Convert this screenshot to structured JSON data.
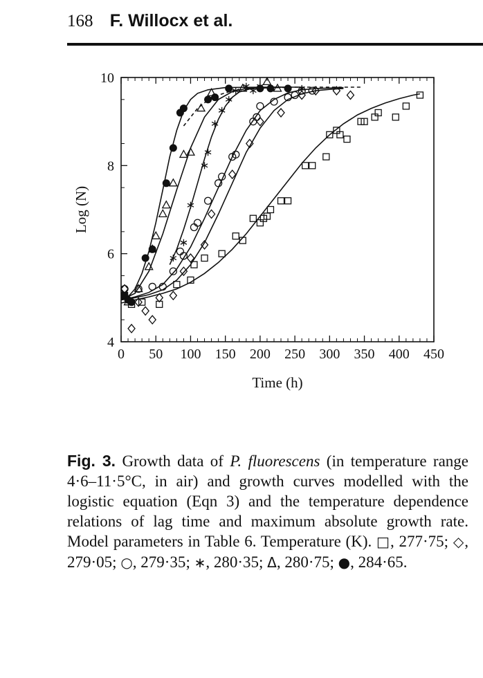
{
  "page": {
    "number": "168",
    "authors": "F. Willocx et al."
  },
  "chart_data": {
    "type": "scatter",
    "xlabel": "Time (h)",
    "ylabel": "Log (N)",
    "xlim": [
      0,
      450
    ],
    "ylim": [
      4,
      10
    ],
    "xticks": [
      0,
      50,
      100,
      150,
      200,
      250,
      300,
      350,
      400,
      450
    ],
    "yticks": [
      4,
      6,
      8,
      10
    ],
    "series": [
      {
        "name": "277·75",
        "marker": "square",
        "points": [
          [
            5,
            5.05
          ],
          [
            15,
            4.85
          ],
          [
            30,
            4.9
          ],
          [
            55,
            4.85
          ],
          [
            80,
            5.3
          ],
          [
            100,
            5.4
          ],
          [
            105,
            5.75
          ],
          [
            120,
            5.9
          ],
          [
            145,
            6.0
          ],
          [
            165,
            6.4
          ],
          [
            175,
            6.3
          ],
          [
            190,
            6.8
          ],
          [
            200,
            6.7
          ],
          [
            205,
            6.8
          ],
          [
            210,
            6.85
          ],
          [
            215,
            7.0
          ],
          [
            230,
            7.2
          ],
          [
            240,
            7.2
          ],
          [
            265,
            8.0
          ],
          [
            275,
            8.0
          ],
          [
            295,
            8.2
          ],
          [
            300,
            8.7
          ],
          [
            310,
            8.8
          ],
          [
            315,
            8.7
          ],
          [
            325,
            8.6
          ],
          [
            345,
            9.0
          ],
          [
            350,
            9.0
          ],
          [
            365,
            9.1
          ],
          [
            370,
            9.2
          ],
          [
            395,
            9.1
          ],
          [
            410,
            9.35
          ],
          [
            430,
            9.6
          ]
        ],
        "curve": [
          [
            0,
            4.88
          ],
          [
            20,
            4.95
          ],
          [
            40,
            5.02
          ],
          [
            60,
            5.1
          ],
          [
            80,
            5.2
          ],
          [
            100,
            5.35
          ],
          [
            120,
            5.55
          ],
          [
            140,
            5.8
          ],
          [
            160,
            6.1
          ],
          [
            180,
            6.45
          ],
          [
            200,
            6.85
          ],
          [
            220,
            7.25
          ],
          [
            240,
            7.65
          ],
          [
            260,
            8.05
          ],
          [
            280,
            8.4
          ],
          [
            300,
            8.7
          ],
          [
            320,
            8.95
          ],
          [
            340,
            9.15
          ],
          [
            360,
            9.3
          ],
          [
            380,
            9.42
          ],
          [
            400,
            9.52
          ],
          [
            420,
            9.6
          ],
          [
            430,
            9.63
          ]
        ]
      },
      {
        "name": "279·05",
        "marker": "diamond",
        "points": [
          [
            5,
            5.2
          ],
          [
            15,
            4.3
          ],
          [
            25,
            4.9
          ],
          [
            35,
            4.7
          ],
          [
            45,
            4.5
          ],
          [
            55,
            5.0
          ],
          [
            75,
            5.05
          ],
          [
            90,
            5.6
          ],
          [
            100,
            5.9
          ],
          [
            120,
            6.2
          ],
          [
            130,
            6.9
          ],
          [
            160,
            7.8
          ],
          [
            185,
            8.5
          ],
          [
            200,
            9.0
          ],
          [
            230,
            9.2
          ],
          [
            260,
            9.6
          ],
          [
            280,
            9.7
          ],
          [
            310,
            9.7
          ],
          [
            330,
            9.6
          ]
        ],
        "curve": [
          [
            0,
            4.95
          ],
          [
            20,
            5.0
          ],
          [
            40,
            5.07
          ],
          [
            60,
            5.18
          ],
          [
            80,
            5.4
          ],
          [
            100,
            5.75
          ],
          [
            120,
            6.25
          ],
          [
            140,
            6.9
          ],
          [
            160,
            7.6
          ],
          [
            180,
            8.3
          ],
          [
            200,
            8.85
          ],
          [
            220,
            9.25
          ],
          [
            240,
            9.5
          ],
          [
            260,
            9.63
          ],
          [
            280,
            9.7
          ],
          [
            300,
            9.73
          ],
          [
            320,
            9.75
          ]
        ]
      },
      {
        "name": "279·35",
        "marker": "circle",
        "points": [
          [
            5,
            5.2
          ],
          [
            25,
            5.2
          ],
          [
            45,
            5.25
          ],
          [
            60,
            5.25
          ],
          [
            75,
            5.6
          ],
          [
            85,
            6.05
          ],
          [
            90,
            5.95
          ],
          [
            105,
            6.6
          ],
          [
            110,
            6.7
          ],
          [
            125,
            7.2
          ],
          [
            140,
            7.6
          ],
          [
            145,
            7.75
          ],
          [
            160,
            8.2
          ],
          [
            165,
            8.25
          ],
          [
            190,
            9.0
          ],
          [
            195,
            9.1
          ],
          [
            200,
            9.35
          ],
          [
            220,
            9.45
          ],
          [
            240,
            9.55
          ],
          [
            250,
            9.6
          ],
          [
            260,
            9.7
          ],
          [
            275,
            9.7
          ]
        ],
        "curve": [
          [
            0,
            4.95
          ],
          [
            20,
            5.02
          ],
          [
            40,
            5.12
          ],
          [
            60,
            5.3
          ],
          [
            80,
            5.65
          ],
          [
            100,
            6.15
          ],
          [
            120,
            6.8
          ],
          [
            140,
            7.5
          ],
          [
            160,
            8.2
          ],
          [
            180,
            8.8
          ],
          [
            200,
            9.25
          ],
          [
            220,
            9.5
          ],
          [
            240,
            9.65
          ],
          [
            260,
            9.72
          ],
          [
            280,
            9.75
          ],
          [
            300,
            9.76
          ],
          [
            320,
            9.77
          ]
        ]
      },
      {
        "name": "280·35",
        "marker": "star",
        "points": [
          [
            75,
            5.9
          ],
          [
            90,
            6.25
          ],
          [
            100,
            7.1
          ],
          [
            120,
            8.0
          ],
          [
            125,
            8.3
          ],
          [
            135,
            8.95
          ],
          [
            145,
            9.25
          ],
          [
            155,
            9.5
          ],
          [
            165,
            9.7
          ],
          [
            180,
            9.8
          ],
          [
            190,
            9.7
          ],
          [
            200,
            9.8
          ],
          [
            215,
            9.75
          ],
          [
            240,
            9.75
          ],
          [
            260,
            9.75
          ]
        ],
        "curve": [
          [
            70,
            5.75
          ],
          [
            80,
            6.1
          ],
          [
            90,
            6.55
          ],
          [
            100,
            7.05
          ],
          [
            110,
            7.6
          ],
          [
            120,
            8.15
          ],
          [
            130,
            8.65
          ],
          [
            140,
            9.05
          ],
          [
            150,
            9.35
          ],
          [
            160,
            9.55
          ],
          [
            170,
            9.67
          ],
          [
            185,
            9.74
          ],
          [
            200,
            9.77
          ],
          [
            220,
            9.78
          ],
          [
            260,
            9.78
          ]
        ]
      },
      {
        "name": "280·75",
        "marker": "triangle",
        "points": [
          [
            10,
            4.9
          ],
          [
            25,
            5.2
          ],
          [
            40,
            5.7
          ],
          [
            45,
            6.1
          ],
          [
            50,
            6.4
          ],
          [
            60,
            6.9
          ],
          [
            65,
            7.1
          ],
          [
            75,
            7.6
          ],
          [
            90,
            8.25
          ],
          [
            100,
            8.3
          ],
          [
            115,
            9.3
          ],
          [
            130,
            9.65
          ],
          [
            175,
            9.75
          ],
          [
            210,
            9.9
          ],
          [
            225,
            9.75
          ]
        ],
        "curve": [
          [
            0,
            4.95
          ],
          [
            20,
            5.1
          ],
          [
            40,
            5.6
          ],
          [
            60,
            6.45
          ],
          [
            80,
            7.45
          ],
          [
            100,
            8.4
          ],
          [
            120,
            9.1
          ],
          [
            140,
            9.5
          ],
          [
            160,
            9.68
          ],
          [
            180,
            9.75
          ],
          [
            200,
            9.77
          ],
          [
            230,
            9.78
          ]
        ]
      },
      {
        "name": "284·65",
        "marker": "filled-circle",
        "points": [
          [
            5,
            5.05
          ],
          [
            10,
            4.95
          ],
          [
            15,
            4.9
          ],
          [
            35,
            5.9
          ],
          [
            45,
            6.1
          ],
          [
            65,
            7.6
          ],
          [
            75,
            8.4
          ],
          [
            85,
            9.2
          ],
          [
            90,
            9.3
          ],
          [
            125,
            9.5
          ],
          [
            135,
            9.55
          ],
          [
            155,
            9.75
          ],
          [
            200,
            9.75
          ],
          [
            215,
            9.75
          ],
          [
            240,
            9.75
          ]
        ],
        "curve": [
          [
            0,
            4.95
          ],
          [
            10,
            5.02
          ],
          [
            20,
            5.2
          ],
          [
            30,
            5.55
          ],
          [
            40,
            6.05
          ],
          [
            50,
            6.7
          ],
          [
            60,
            7.45
          ],
          [
            70,
            8.2
          ],
          [
            80,
            8.8
          ],
          [
            90,
            9.25
          ],
          [
            100,
            9.5
          ],
          [
            110,
            9.64
          ],
          [
            125,
            9.72
          ],
          [
            150,
            9.77
          ],
          [
            200,
            9.78
          ],
          [
            240,
            9.78
          ]
        ]
      }
    ],
    "dashed_curve": {
      "points": [
        [
          90,
          8.9
        ],
        [
          110,
          9.3
        ],
        [
          130,
          9.55
        ],
        [
          160,
          9.7
        ],
        [
          200,
          9.76
        ],
        [
          250,
          9.78
        ],
        [
          300,
          9.78
        ],
        [
          345,
          9.78
        ]
      ]
    }
  },
  "caption": {
    "label": "Fig. 3.",
    "part1": " Growth data of ",
    "organism": "P. fluorescens",
    "part2": " (in temperature range 4·6–11·5°C, in air) and growth curves modelled with the logistic equation (Eqn 3) and the temperature dependence relations of lag time and maximum absolute growth rate. Model parameters in Table 6. Temperature (K). ",
    "legend": [
      {
        "symbol": "□",
        "value": "277·75"
      },
      {
        "symbol": "◇",
        "value": "279·05"
      },
      {
        "symbol": "○",
        "value": "279·35"
      },
      {
        "symbol": "∗",
        "value": "280·35"
      },
      {
        "symbol": "Δ",
        "value": "280·75"
      },
      {
        "symbol": "●",
        "value": "284·65"
      }
    ]
  }
}
